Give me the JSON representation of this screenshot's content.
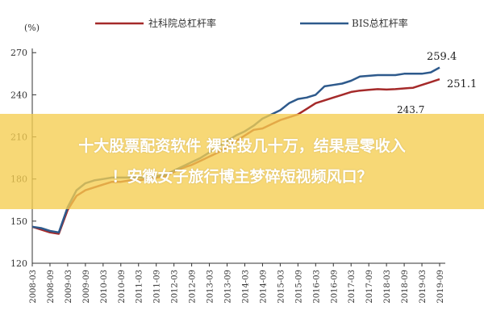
{
  "chart_data": {
    "type": "line",
    "ylabel": "(%)",
    "ylim": [
      120,
      275
    ],
    "yticks": [
      120,
      150,
      180,
      210,
      240,
      270
    ],
    "xtick_labels": [
      "2008-03",
      "2008-09",
      "2009-03",
      "2009-09",
      "2010-03",
      "2010-09",
      "2011-03",
      "2011-09",
      "2012-03",
      "2012-09",
      "2013-03",
      "2013-09",
      "2014-03",
      "2014-09",
      "2015-03",
      "2015-09",
      "2016-03",
      "2016-09",
      "2017-03",
      "2017-09",
      "2018-03",
      "2018-09",
      "2019-03",
      "2019-09"
    ],
    "x": [
      "2008-03",
      "2008-06",
      "2008-09",
      "2008-12",
      "2009-03",
      "2009-06",
      "2009-09",
      "2009-12",
      "2010-03",
      "2010-06",
      "2010-09",
      "2010-12",
      "2011-03",
      "2011-06",
      "2011-09",
      "2011-12",
      "2012-03",
      "2012-06",
      "2012-09",
      "2012-12",
      "2013-03",
      "2013-06",
      "2013-09",
      "2013-12",
      "2014-03",
      "2014-06",
      "2014-09",
      "2014-12",
      "2015-03",
      "2015-06",
      "2015-09",
      "2015-12",
      "2016-03",
      "2016-06",
      "2016-09",
      "2016-12",
      "2017-03",
      "2017-06",
      "2017-09",
      "2017-12",
      "2018-03",
      "2018-06",
      "2018-09",
      "2018-12",
      "2019-03",
      "2019-06",
      "2019-09"
    ],
    "series": [
      {
        "name": "社科院总杠杆率",
        "color": "#a52a2a",
        "values": [
          146,
          144,
          142,
          141,
          158,
          168,
          172,
          174,
          176,
          178,
          178,
          179,
          179,
          180,
          181,
          182,
          185,
          188,
          190,
          193,
          196,
          199,
          203,
          207,
          211,
          215,
          216,
          219,
          222,
          224,
          226,
          230,
          234,
          236,
          238,
          240,
          242,
          243,
          243.5,
          244,
          243.7,
          244,
          244.5,
          245,
          247,
          249,
          251.1
        ]
      },
      {
        "name": "BIS总杠杆率",
        "color": "#2e5a8c",
        "values": [
          146,
          145,
          143,
          142,
          160,
          172,
          177,
          179,
          180,
          181,
          181,
          181,
          181,
          181,
          182,
          183,
          186,
          189,
          192,
          195,
          199,
          203,
          207,
          211,
          214,
          218,
          223,
          226,
          229,
          234,
          237,
          238,
          240,
          246,
          247,
          248,
          250,
          253,
          253.5,
          254,
          254,
          254,
          255,
          255,
          255,
          256,
          259.4
        ]
      }
    ],
    "annotations": [
      "259.4",
      "251.1",
      "243.7"
    ],
    "grid": false,
    "legend": "top"
  },
  "overlay": {
    "line1": "十大股票配资软件 裸辞投几十万，结果是零收入",
    "line2": "！安徽女子旅行博主梦碎短视频风口？"
  }
}
